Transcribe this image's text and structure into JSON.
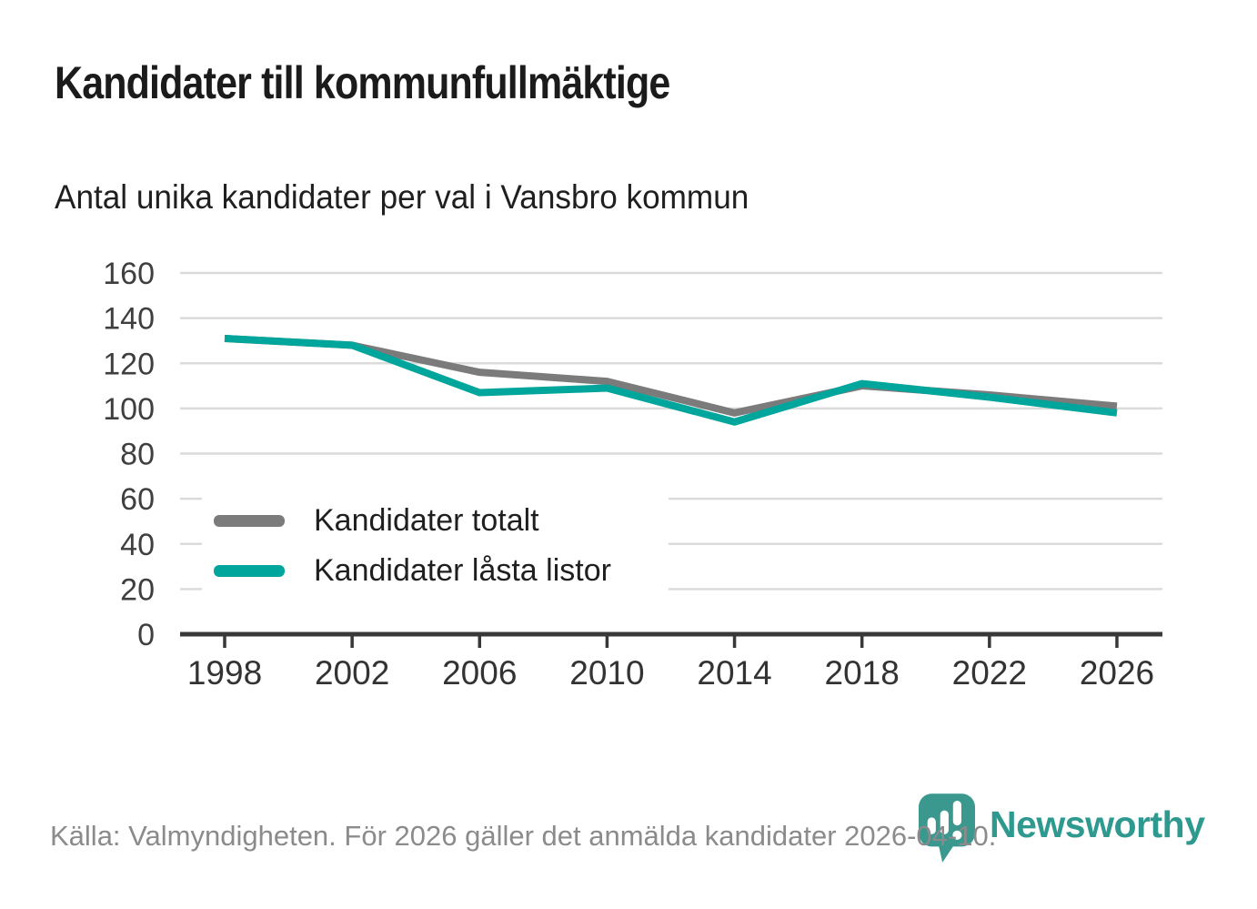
{
  "header": {
    "title": "Kandidater till kommunfullmäktige",
    "subtitle": "Antal unika kandidater per val i Vansbro kommun"
  },
  "chart_data": {
    "type": "line",
    "x": [
      1998,
      2002,
      2006,
      2010,
      2014,
      2018,
      2022,
      2026
    ],
    "series": [
      {
        "name": "Kandidater totalt",
        "color": "#7b7b7b",
        "values": [
          131,
          128,
          116,
          112,
          98,
          110,
          106,
          101
        ]
      },
      {
        "name": "Kandidater låsta listor",
        "color": "#00a59b",
        "values": [
          131,
          128,
          107,
          109,
          94,
          111,
          105,
          98
        ]
      }
    ],
    "ylim": [
      0,
      160
    ],
    "ytick_step": 20,
    "yticks": [
      0,
      20,
      40,
      60,
      80,
      100,
      120,
      140,
      160
    ],
    "grid": "horizontal",
    "legend_position": "inside-lower-left",
    "title": "Kandidater till kommunfullmäktige",
    "xlabel": "",
    "ylabel": ""
  },
  "footer": {
    "source": "Källa: Valmyndigheten. För 2026 gäller det anmälda kandidater 2026-04-10."
  },
  "logo": {
    "text": "Newsworthy"
  },
  "colors": {
    "accent_teal": "#00a59b",
    "series_gray": "#7b7b7b",
    "logo_teal": "#3a988f",
    "gridline": "#dbdbdb",
    "axis": "#383838"
  }
}
